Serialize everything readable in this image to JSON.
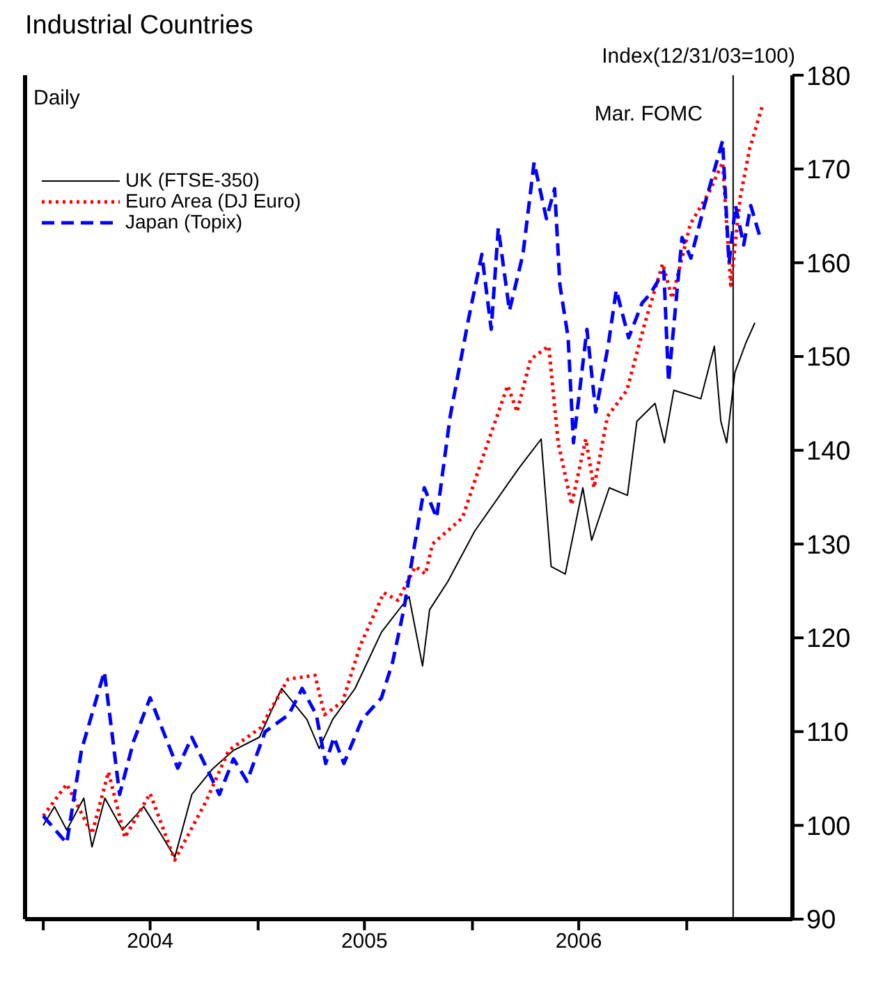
{
  "chart_data": {
    "type": "line",
    "title": "Industrial Countries",
    "ylabel": "Index(12/31/03=100)",
    "annotations": [
      "Daily"
    ],
    "xlim": [
      "2003-12-01",
      "2007-06-30"
    ],
    "xticks": [
      {
        "value": "2004-01-01",
        "label": null
      },
      {
        "value": "2004-07-01",
        "label": "2004"
      },
      {
        "value": "2005-01-01",
        "label": null
      },
      {
        "value": "2005-07-01",
        "label": "2005"
      },
      {
        "value": "2006-01-01",
        "label": null
      },
      {
        "value": "2006-07-01",
        "label": "2006"
      },
      {
        "value": "2007-01-01",
        "label": null
      }
    ],
    "ylim": [
      90,
      180
    ],
    "yticks": [
      90,
      100,
      110,
      120,
      130,
      140,
      150,
      160,
      170,
      180
    ],
    "legend": "top left",
    "marker": "none",
    "ref_lines": [
      {
        "axis": "x",
        "value": "2007-03-21",
        "label": "Mar. FOMC",
        "color": "#000000"
      }
    ],
    "series": [
      {
        "name": "UK (FTSE-350)",
        "color": "#000000",
        "line_style": "solid",
        "x": [
          "2004-01-01",
          "2004-01-20",
          "2004-02-10",
          "2004-03-10",
          "2004-03-24",
          "2004-04-15",
          "2004-05-15",
          "2004-06-20",
          "2004-07-20",
          "2004-08-12",
          "2004-09-10",
          "2004-10-15",
          "2004-11-20",
          "2005-01-03",
          "2005-02-10",
          "2005-03-25",
          "2005-04-15",
          "2005-05-08",
          "2005-06-15",
          "2005-07-30",
          "2005-09-15",
          "2005-10-08",
          "2005-10-20",
          "2005-11-20",
          "2006-01-05",
          "2006-03-20",
          "2006-04-28",
          "2006-05-15",
          "2006-06-08",
          "2006-07-08",
          "2006-07-23",
          "2006-08-22",
          "2006-09-22",
          "2006-10-08",
          "2006-11-08",
          "2006-11-24",
          "2006-12-10",
          "2007-01-25",
          "2007-02-17",
          "2007-02-28",
          "2007-03-10",
          "2007-03-24",
          "2007-04-12",
          "2007-04-27"
        ],
        "values": [
          100,
          102,
          99.5,
          102.9,
          97.7,
          102.9,
          99.5,
          102,
          99,
          96.6,
          103.3,
          106,
          108,
          109.4,
          114.6,
          111.3,
          108.2,
          111.3,
          114.6,
          120.6,
          124.4,
          117,
          123,
          126,
          131.4,
          138,
          141.2,
          127.6,
          126.8,
          136,
          130.4,
          136,
          135.2,
          143.1,
          145,
          140.8,
          146.4,
          145.5,
          151.1,
          143.1,
          140.8,
          148.3,
          151.5,
          153.6
        ]
      },
      {
        "name": "Euro Area (DJ Euro)",
        "color": "#ff0000",
        "line_style": "dotted",
        "x": [
          "2004-01-01",
          "2004-02-10",
          "2004-03-24",
          "2004-04-21",
          "2004-05-19",
          "2004-07-01",
          "2004-08-12",
          "2004-10-03",
          "2004-11-12",
          "2005-01-05",
          "2005-02-21",
          "2005-04-08",
          "2005-04-24",
          "2005-05-25",
          "2005-06-24",
          "2005-08-03",
          "2005-08-27",
          "2005-09-26",
          "2005-10-13",
          "2005-10-25",
          "2005-12-15",
          "2006-01-14",
          "2006-03-02",
          "2006-03-18",
          "2006-04-10",
          "2006-05-11",
          "2006-05-27",
          "2006-06-19",
          "2006-07-13",
          "2006-07-27",
          "2006-08-19",
          "2006-09-21",
          "2006-10-21",
          "2006-11-21",
          "2006-12-07",
          "2007-01-07",
          "2007-02-08",
          "2007-03-03",
          "2007-03-17",
          "2007-04-02",
          "2007-04-18",
          "2007-05-10"
        ],
        "values": [
          101,
          104.4,
          99.1,
          105.7,
          98.7,
          103.4,
          96.3,
          102.4,
          108,
          110.4,
          115.6,
          116,
          111.8,
          113.2,
          119.2,
          124.8,
          124,
          127.6,
          126.8,
          130,
          132.8,
          138.4,
          146.9,
          144.1,
          149.7,
          151.1,
          140.8,
          134.2,
          141.2,
          136,
          143.6,
          146.4,
          153.4,
          159.9,
          156.2,
          164.1,
          167.5,
          170.7,
          157.6,
          166.9,
          172.1,
          176.8
        ]
      },
      {
        "name": "Japan (Topix)",
        "color": "#0000ff",
        "line_style": "dashed",
        "x": [
          "2004-01-01",
          "2004-02-10",
          "2004-03-06",
          "2004-04-14",
          "2004-05-10",
          "2004-06-03",
          "2004-07-01",
          "2004-08-17",
          "2004-09-10",
          "2004-10-27",
          "2004-11-20",
          "2004-12-13",
          "2005-01-13",
          "2005-02-22",
          "2005-03-17",
          "2005-04-10",
          "2005-04-26",
          "2005-05-10",
          "2005-05-27",
          "2005-06-27",
          "2005-07-30",
          "2005-08-18",
          "2005-09-06",
          "2005-09-22",
          "2005-10-11",
          "2005-11-01",
          "2005-11-24",
          "2005-12-25",
          "2006-01-17",
          "2006-02-02",
          "2006-02-14",
          "2006-03-05",
          "2006-03-28",
          "2006-04-16",
          "2006-05-07",
          "2006-05-21",
          "2006-05-30",
          "2006-06-13",
          "2006-06-22",
          "2006-07-15",
          "2006-07-30",
          "2006-08-20",
          "2006-09-03",
          "2006-09-24",
          "2006-10-17",
          "2006-10-31",
          "2006-11-23",
          "2006-12-01",
          "2006-12-24",
          "2007-01-08",
          "2007-01-31",
          "2007-03-03",
          "2007-03-14",
          "2007-03-25",
          "2007-04-08",
          "2007-04-20",
          "2007-05-06"
        ],
        "values": [
          101,
          98.1,
          108,
          116.4,
          103.3,
          109,
          113.6,
          106.1,
          109.4,
          103.3,
          107.1,
          104.7,
          110,
          111.8,
          114.6,
          111.8,
          106.6,
          109.4,
          106.6,
          111.3,
          113.6,
          117.4,
          123,
          129,
          136,
          132.8,
          143.6,
          153.9,
          160.9,
          152.9,
          163.7,
          154.9,
          160.9,
          170.7,
          164.7,
          167.9,
          157.6,
          152,
          140.8,
          152.9,
          144.1,
          151.1,
          157.1,
          152,
          155.7,
          156.7,
          159.1,
          147.3,
          162.7,
          160.5,
          166.1,
          173,
          159.9,
          166.1,
          161.9,
          166.1,
          162.7
        ]
      }
    ]
  }
}
